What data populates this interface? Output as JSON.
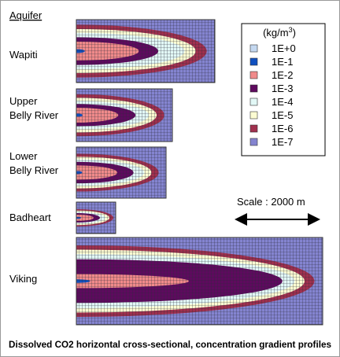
{
  "header": "Aquifer",
  "panels": [
    {
      "label_lines": [
        "Wapiti"
      ]
    },
    {
      "label_lines": [
        "Upper",
        "Belly River"
      ]
    },
    {
      "label_lines": [
        "Lower",
        "Belly River"
      ]
    },
    {
      "label_lines": [
        "Badheart"
      ]
    },
    {
      "label_lines": [
        "Viking"
      ]
    }
  ],
  "legend": {
    "title": "(kg/m",
    "title_sup": "3",
    "title_end": ")",
    "entries": [
      {
        "label": "1E+0",
        "color": "#c4d8f0"
      },
      {
        "label": "1E-1",
        "color": "#1050c0"
      },
      {
        "label": "1E-2",
        "color": "#f08a8a"
      },
      {
        "label": "1E-3",
        "color": "#5e0a5e"
      },
      {
        "label": "1E-4",
        "color": "#e2f8f6"
      },
      {
        "label": "1E-5",
        "color": "#fcfcd2"
      },
      {
        "label": "1E-6",
        "color": "#a0304e"
      },
      {
        "label": "1E-7",
        "color": "#8484d0"
      }
    ]
  },
  "scale_label": "Scale : 2000 m",
  "caption": "Dissolved CO2 horizontal cross-sectional, concentration gradient profiles"
}
